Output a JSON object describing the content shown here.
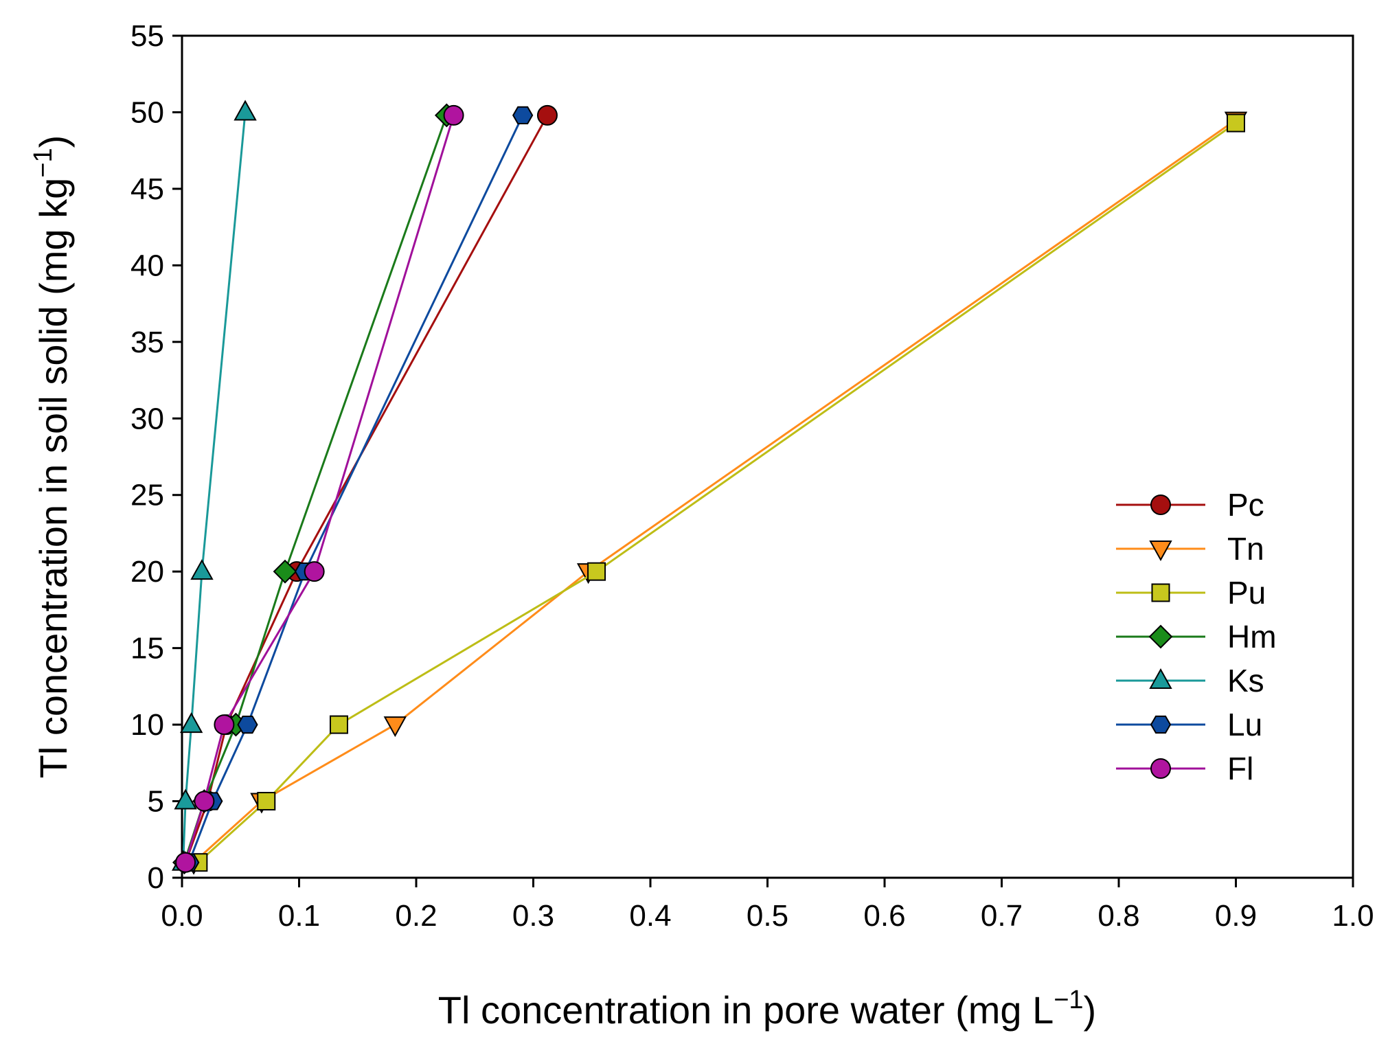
{
  "chart_data": {
    "type": "line",
    "xlabel": "Tl concentration in pore water (mg L",
    "xlabel_sup": "−1",
    "xlabel_end": ")",
    "ylabel": "Tl concentration in soil solid (mg kg",
    "ylabel_sup": "−1",
    "ylabel_end": ")",
    "xlim": [
      0.0,
      1.0
    ],
    "ylim": [
      0,
      55
    ],
    "xticks": [
      0.0,
      0.1,
      0.2,
      0.3,
      0.4,
      0.5,
      0.6,
      0.7,
      0.8,
      0.9,
      1.0
    ],
    "xtick_labels": [
      "0.0",
      "0.1",
      "0.2",
      "0.3",
      "0.4",
      "0.5",
      "0.6",
      "0.7",
      "0.8",
      "0.9",
      "1.0"
    ],
    "yticks": [
      0,
      5,
      10,
      15,
      20,
      25,
      30,
      35,
      40,
      45,
      50,
      55
    ],
    "ytick_labels": [
      "0",
      "5",
      "10",
      "15",
      "20",
      "25",
      "30",
      "35",
      "40",
      "45",
      "50",
      "55"
    ],
    "grid": false,
    "legend_position": "right",
    "series": [
      {
        "name": "Pc",
        "marker": "circle",
        "color": "#a50f0f",
        "fill": "#a50f0f",
        "x": [
          0.003,
          0.022,
          0.038,
          0.098,
          0.312
        ],
        "y": [
          1,
          5,
          10,
          20,
          49.8
        ]
      },
      {
        "name": "Tn",
        "marker": "triangle-down",
        "color": "#ff8c1a",
        "fill": "#ff8c1a",
        "x": [
          0.01,
          0.068,
          0.182,
          0.347,
          0.9
        ],
        "y": [
          1,
          5,
          10,
          20,
          49.5
        ]
      },
      {
        "name": "Pu",
        "marker": "square",
        "color": "#bdbd16",
        "fill": "#c8c81e",
        "x": [
          0.014,
          0.072,
          0.134,
          0.354,
          0.9
        ],
        "y": [
          1,
          5,
          10,
          20,
          49.3
        ]
      },
      {
        "name": "Hm",
        "marker": "diamond",
        "color": "#1a7a1a",
        "fill": "#1a8c1a",
        "x": [
          0.002,
          0.019,
          0.046,
          0.088,
          0.226
        ],
        "y": [
          1,
          5,
          10,
          20,
          49.8
        ]
      },
      {
        "name": "Ks",
        "marker": "triangle-up",
        "color": "#1a9999",
        "fill": "#1a9a9a",
        "x": [
          0.001,
          0.003,
          0.008,
          0.017,
          0.054
        ],
        "y": [
          1,
          5,
          10,
          20,
          50
        ]
      },
      {
        "name": "Lu",
        "marker": "hexagon",
        "color": "#0d4a9e",
        "fill": "#0d4a9e",
        "x": [
          0.006,
          0.026,
          0.056,
          0.105,
          0.291
        ],
        "y": [
          1,
          5,
          10,
          20,
          49.8
        ]
      },
      {
        "name": "Fl",
        "marker": "circle",
        "color": "#a0109a",
        "fill": "#b0149f",
        "x": [
          0.003,
          0.019,
          0.036,
          0.113,
          0.232
        ],
        "y": [
          1,
          5,
          10,
          20,
          49.8
        ]
      }
    ]
  }
}
